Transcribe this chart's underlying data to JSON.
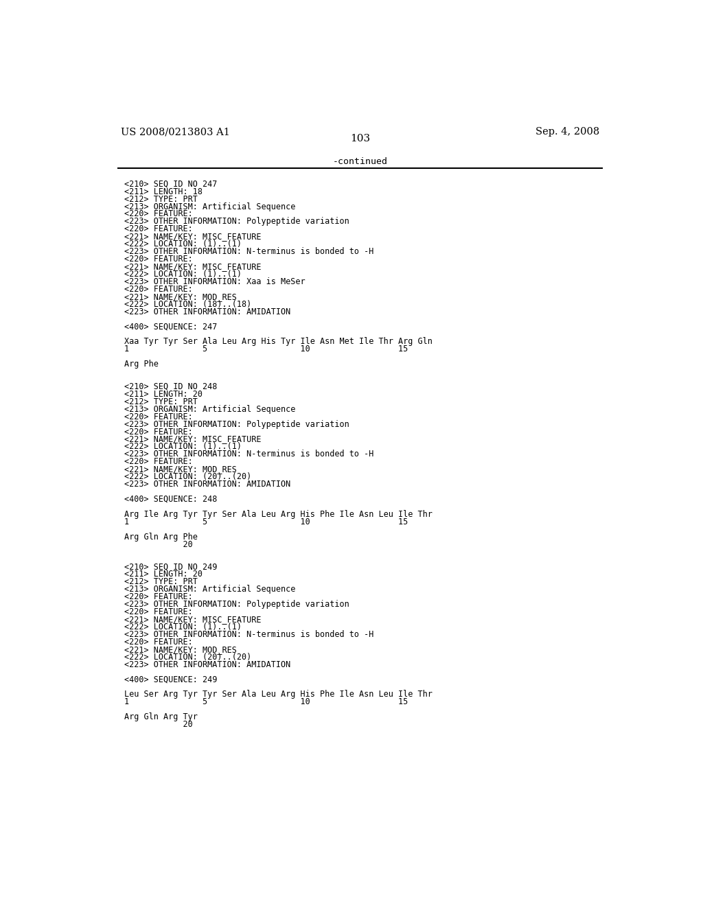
{
  "bg_color": "#ffffff",
  "header_left": "US 2008/0213803 A1",
  "header_right": "Sep. 4, 2008",
  "page_number": "103",
  "continued_text": "-continued",
  "font_size": 8.5,
  "mono_font": "DejaVu Sans Mono",
  "serif_font": "DejaVu Serif",
  "lines": [
    "",
    "<210> SEQ ID NO 247",
    "<211> LENGTH: 18",
    "<212> TYPE: PRT",
    "<213> ORGANISM: Artificial Sequence",
    "<220> FEATURE:",
    "<223> OTHER INFORMATION: Polypeptide variation",
    "<220> FEATURE:",
    "<221> NAME/KEY: MISC_FEATURE",
    "<222> LOCATION: (1)..(1)",
    "<223> OTHER INFORMATION: N-terminus is bonded to -H",
    "<220> FEATURE:",
    "<221> NAME/KEY: MISC_FEATURE",
    "<222> LOCATION: (1)..(1)",
    "<223> OTHER INFORMATION: Xaa is MeSer",
    "<220> FEATURE:",
    "<221> NAME/KEY: MOD_RES",
    "<222> LOCATION: (18)..(18)",
    "<223> OTHER INFORMATION: AMIDATION",
    "",
    "<400> SEQUENCE: 247",
    "",
    "Xaa Tyr Tyr Ser Ala Leu Arg His Tyr Ile Asn Met Ile Thr Arg Gln",
    "1               5                   10                  15",
    "",
    "Arg Phe",
    "",
    "",
    "<210> SEQ ID NO 248",
    "<211> LENGTH: 20",
    "<212> TYPE: PRT",
    "<213> ORGANISM: Artificial Sequence",
    "<220> FEATURE:",
    "<223> OTHER INFORMATION: Polypeptide variation",
    "<220> FEATURE:",
    "<221> NAME/KEY: MISC_FEATURE",
    "<222> LOCATION: (1)..(1)",
    "<223> OTHER INFORMATION: N-terminus is bonded to -H",
    "<220> FEATURE:",
    "<221> NAME/KEY: MOD_RES",
    "<222> LOCATION: (20)..(20)",
    "<223> OTHER INFORMATION: AMIDATION",
    "",
    "<400> SEQUENCE: 248",
    "",
    "Arg Ile Arg Tyr Tyr Ser Ala Leu Arg His Phe Ile Asn Leu Ile Thr",
    "1               5                   10                  15",
    "",
    "Arg Gln Arg Phe",
    "            20",
    "",
    "",
    "<210> SEQ ID NO 249",
    "<211> LENGTH: 20",
    "<212> TYPE: PRT",
    "<213> ORGANISM: Artificial Sequence",
    "<220> FEATURE:",
    "<223> OTHER INFORMATION: Polypeptide variation",
    "<220> FEATURE:",
    "<221> NAME/KEY: MISC_FEATURE",
    "<222> LOCATION: (1)..(1)",
    "<223> OTHER INFORMATION: N-terminus is bonded to -H",
    "<220> FEATURE:",
    "<221> NAME/KEY: MOD_RES",
    "<222> LOCATION: (20)..(20)",
    "<223> OTHER INFORMATION: AMIDATION",
    "",
    "<400> SEQUENCE: 249",
    "",
    "Leu Ser Arg Tyr Tyr Ser Ala Leu Arg His Phe Ile Asn Leu Ile Thr",
    "1               5                   10                  15",
    "",
    "Arg Gln Arg Tyr",
    "            20",
    ""
  ]
}
